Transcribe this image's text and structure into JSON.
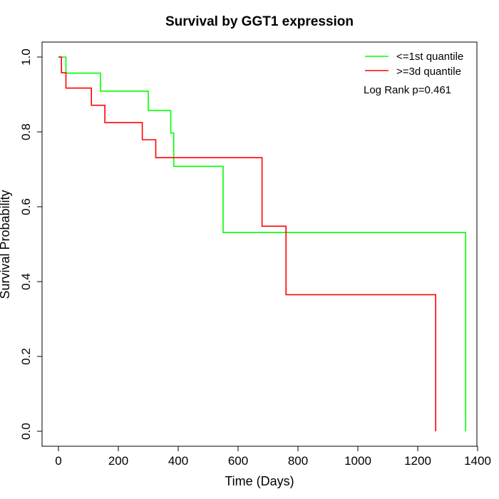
{
  "chart_data": {
    "type": "line",
    "subtype": "kaplan-meier-step",
    "title": "Survival by GGT1 expression",
    "xlabel": "Time (Days)",
    "ylabel": "Survival Probability",
    "xlim": [
      0,
      1400
    ],
    "ylim": [
      0,
      1.0
    ],
    "xticks": [
      0,
      200,
      400,
      600,
      800,
      1000,
      1200,
      1400
    ],
    "yticks": [
      0.0,
      0.2,
      0.4,
      0.6,
      0.8,
      1.0
    ],
    "xtick_labels": [
      "0",
      "200",
      "400",
      "600",
      "800",
      "1000",
      "1200",
      "1400"
    ],
    "ytick_labels": [
      "0.0",
      "0.2",
      "0.4",
      "0.6",
      "0.8",
      "1.0"
    ],
    "grid": false,
    "legend_position": "top-right",
    "annotation": "Log Rank p=0.461",
    "series": [
      {
        "name": "<=1st quantile",
        "color": "#00ff00",
        "x": [
          0,
          25,
          25,
          140,
          140,
          300,
          300,
          375,
          375,
          385,
          385,
          550,
          550,
          1360,
          1360
        ],
        "y": [
          1.0,
          1.0,
          0.957,
          0.957,
          0.909,
          0.909,
          0.857,
          0.857,
          0.797,
          0.797,
          0.708,
          0.708,
          0.531,
          0.531,
          0.0
        ]
      },
      {
        "name": ">=3d quantile",
        "color": "#ff0000",
        "x": [
          0,
          10,
          10,
          25,
          25,
          110,
          110,
          155,
          155,
          280,
          280,
          325,
          325,
          680,
          680,
          760,
          760,
          1260,
          1260
        ],
        "y": [
          1.0,
          1.0,
          0.958,
          0.958,
          0.917,
          0.917,
          0.871,
          0.871,
          0.825,
          0.825,
          0.779,
          0.779,
          0.731,
          0.731,
          0.548,
          0.548,
          0.365,
          0.365,
          0.0
        ]
      }
    ]
  }
}
